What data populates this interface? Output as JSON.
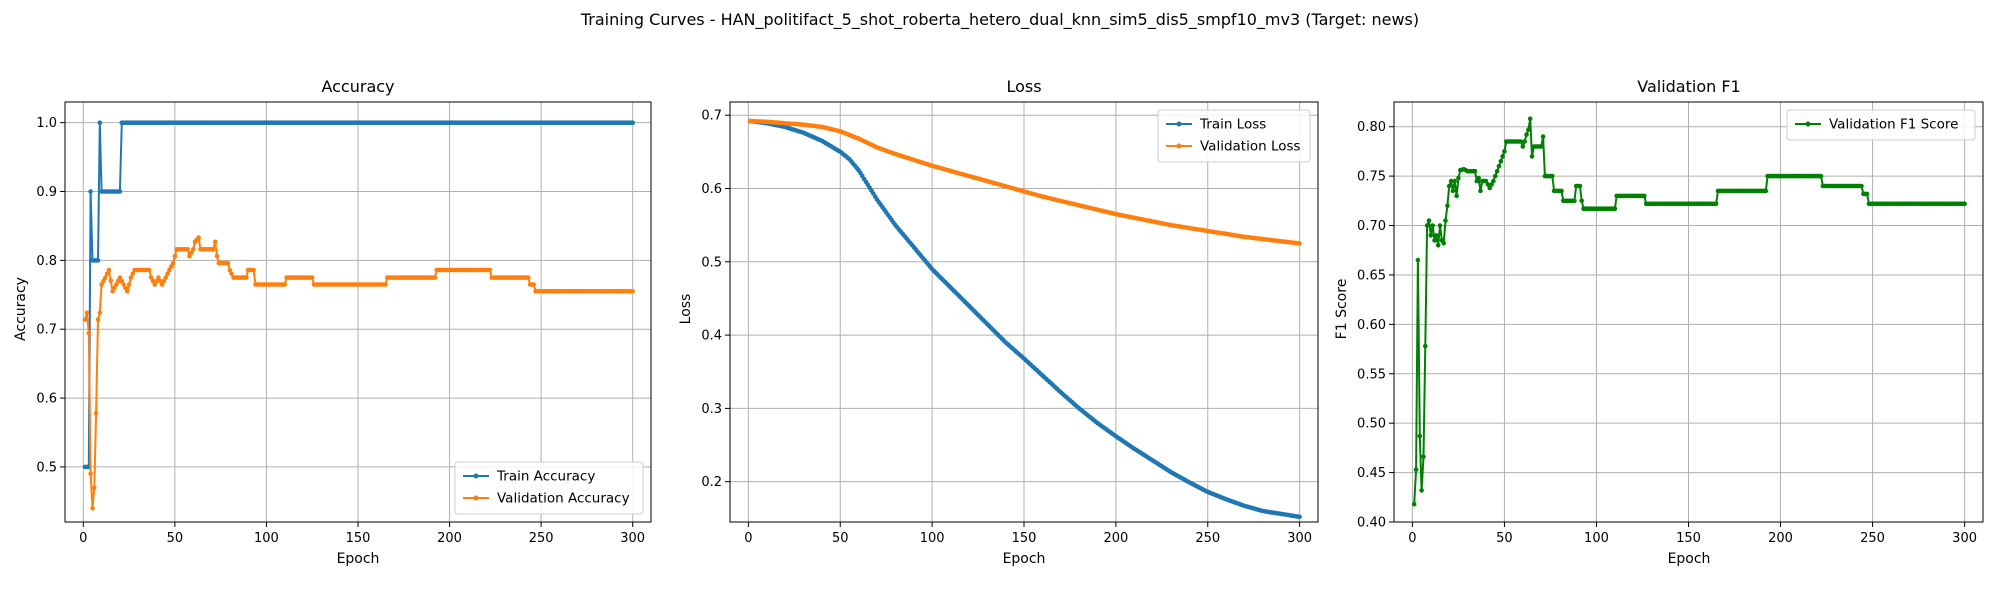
{
  "figure_title": "Training Curves - HAN_politifact_5_shot_roberta_hetero_dual_knn_sim5_dis5_smpf10_mv3 (Target: news)",
  "chart_data": [
    {
      "type": "line",
      "title": "Accuracy",
      "xlabel": "Epoch",
      "ylabel": "Accuracy",
      "xlim": [
        -10,
        310
      ],
      "ylim": [
        0.42,
        1.03
      ],
      "xticks": [
        0,
        50,
        100,
        150,
        200,
        250,
        300
      ],
      "yticks": [
        0.5,
        0.6,
        0.7,
        0.8,
        0.9,
        1.0
      ],
      "ytick_labels": [
        "0.5",
        "0.6",
        "0.7",
        "0.8",
        "0.9",
        "1.0"
      ],
      "grid": true,
      "legend": "lower-right",
      "series": [
        {
          "name": "Train Accuracy",
          "color": "#1f77b4",
          "points": [
            [
              1,
              0.5
            ],
            [
              2,
              0.5
            ],
            [
              3,
              0.5
            ],
            [
              4,
              0.9
            ],
            [
              5,
              0.8
            ],
            [
              6,
              0.8
            ],
            [
              7,
              0.8
            ],
            [
              8,
              0.8
            ],
            [
              9,
              1.0
            ],
            [
              10,
              0.9
            ],
            [
              20,
              0.9
            ],
            [
              21,
              1.0
            ],
            [
              300,
              1.0
            ]
          ]
        },
        {
          "name": "Validation Accuracy",
          "color": "#ff7f0e",
          "points": [
            [
              1,
              0.714
            ],
            [
              2,
              0.724
            ],
            [
              3,
              0.694
            ],
            [
              4,
              0.49
            ],
            [
              5,
              0.44
            ],
            [
              6,
              0.47
            ],
            [
              7,
              0.578
            ],
            [
              8,
              0.714
            ],
            [
              9,
              0.724
            ],
            [
              10,
              0.765
            ],
            [
              12,
              0.775
            ],
            [
              14,
              0.786
            ],
            [
              16,
              0.755
            ],
            [
              18,
              0.765
            ],
            [
              20,
              0.775
            ],
            [
              22,
              0.765
            ],
            [
              24,
              0.755
            ],
            [
              26,
              0.775
            ],
            [
              28,
              0.786
            ],
            [
              36,
              0.786
            ],
            [
              37,
              0.775
            ],
            [
              39,
              0.765
            ],
            [
              41,
              0.775
            ],
            [
              43,
              0.765
            ],
            [
              45,
              0.775
            ],
            [
              47,
              0.786
            ],
            [
              49,
              0.796
            ],
            [
              51,
              0.816
            ],
            [
              57,
              0.816
            ],
            [
              58,
              0.806
            ],
            [
              60,
              0.816
            ],
            [
              61,
              0.827
            ],
            [
              63,
              0.833
            ],
            [
              64,
              0.816
            ],
            [
              71,
              0.816
            ],
            [
              72,
              0.827
            ],
            [
              73,
              0.806
            ],
            [
              74,
              0.796
            ],
            [
              79,
              0.796
            ],
            [
              80,
              0.786
            ],
            [
              82,
              0.775
            ],
            [
              89,
              0.775
            ],
            [
              90,
              0.786
            ],
            [
              93,
              0.786
            ],
            [
              94,
              0.765
            ],
            [
              110,
              0.765
            ],
            [
              111,
              0.775
            ],
            [
              125,
              0.775
            ],
            [
              126,
              0.765
            ],
            [
              165,
              0.765
            ],
            [
              166,
              0.775
            ],
            [
              192,
              0.775
            ],
            [
              193,
              0.786
            ],
            [
              222,
              0.786
            ],
            [
              223,
              0.775
            ],
            [
              243,
              0.775
            ],
            [
              244,
              0.765
            ],
            [
              246,
              0.765
            ],
            [
              247,
              0.755
            ],
            [
              300,
              0.755
            ]
          ]
        }
      ]
    },
    {
      "type": "line",
      "title": "Loss",
      "xlabel": "Epoch",
      "ylabel": "Loss",
      "xlim": [
        -10,
        310
      ],
      "ylim": [
        0.145,
        0.718
      ],
      "xticks": [
        0,
        50,
        100,
        150,
        200,
        250,
        300
      ],
      "yticks": [
        0.2,
        0.3,
        0.4,
        0.5,
        0.6,
        0.7
      ],
      "ytick_labels": [
        "0.2",
        "0.3",
        "0.4",
        "0.5",
        "0.6",
        "0.7"
      ],
      "grid": true,
      "legend": "upper-right",
      "series": [
        {
          "name": "Train Loss",
          "color": "#1f77b4",
          "points": [
            [
              1,
              0.692
            ],
            [
              10,
              0.689
            ],
            [
              20,
              0.684
            ],
            [
              30,
              0.676
            ],
            [
              40,
              0.665
            ],
            [
              50,
              0.65
            ],
            [
              55,
              0.64
            ],
            [
              60,
              0.625
            ],
            [
              65,
              0.605
            ],
            [
              70,
              0.585
            ],
            [
              80,
              0.55
            ],
            [
              90,
              0.52
            ],
            [
              100,
              0.49
            ],
            [
              110,
              0.465
            ],
            [
              120,
              0.44
            ],
            [
              130,
              0.415
            ],
            [
              140,
              0.39
            ],
            [
              150,
              0.368
            ],
            [
              160,
              0.345
            ],
            [
              170,
              0.322
            ],
            [
              180,
              0.3
            ],
            [
              190,
              0.28
            ],
            [
              200,
              0.262
            ],
            [
              210,
              0.245
            ],
            [
              220,
              0.229
            ],
            [
              230,
              0.213
            ],
            [
              240,
              0.199
            ],
            [
              250,
              0.186
            ],
            [
              260,
              0.176
            ],
            [
              270,
              0.167
            ],
            [
              280,
              0.16
            ],
            [
              290,
              0.156
            ],
            [
              300,
              0.152
            ]
          ]
        },
        {
          "name": "Validation Loss",
          "color": "#ff7f0e",
          "points": [
            [
              1,
              0.692
            ],
            [
              10,
              0.691
            ],
            [
              20,
              0.689
            ],
            [
              30,
              0.687
            ],
            [
              40,
              0.684
            ],
            [
              50,
              0.678
            ],
            [
              60,
              0.668
            ],
            [
              70,
              0.656
            ],
            [
              80,
              0.647
            ],
            [
              90,
              0.639
            ],
            [
              100,
              0.631
            ],
            [
              110,
              0.624
            ],
            [
              120,
              0.617
            ],
            [
              130,
              0.61
            ],
            [
              140,
              0.603
            ],
            [
              150,
              0.596
            ],
            [
              160,
              0.589
            ],
            [
              170,
              0.583
            ],
            [
              180,
              0.577
            ],
            [
              190,
              0.571
            ],
            [
              200,
              0.565
            ],
            [
              210,
              0.56
            ],
            [
              220,
              0.555
            ],
            [
              230,
              0.55
            ],
            [
              240,
              0.546
            ],
            [
              250,
              0.542
            ],
            [
              260,
              0.538
            ],
            [
              270,
              0.534
            ],
            [
              280,
              0.531
            ],
            [
              290,
              0.528
            ],
            [
              300,
              0.525
            ]
          ]
        }
      ]
    },
    {
      "type": "line",
      "title": "Validation F1",
      "xlabel": "Epoch",
      "ylabel": "F1 Score",
      "xlim": [
        -10,
        310
      ],
      "ylim": [
        0.4,
        0.825
      ],
      "xticks": [
        0,
        50,
        100,
        150,
        200,
        250,
        300
      ],
      "yticks": [
        0.4,
        0.45,
        0.5,
        0.55,
        0.6,
        0.65,
        0.7,
        0.75,
        0.8
      ],
      "ytick_labels": [
        "0.40",
        "0.45",
        "0.50",
        "0.55",
        "0.60",
        "0.65",
        "0.70",
        "0.75",
        "0.80"
      ],
      "grid": true,
      "legend": "upper-right",
      "series": [
        {
          "name": "Validation F1 Score",
          "color": "#008000",
          "points": [
            [
              1,
              0.418
            ],
            [
              2,
              0.453
            ],
            [
              3,
              0.665
            ],
            [
              4,
              0.487
            ],
            [
              5,
              0.432
            ],
            [
              6,
              0.466
            ],
            [
              7,
              0.578
            ],
            [
              8,
              0.7
            ],
            [
              9,
              0.705
            ],
            [
              10,
              0.69
            ],
            [
              11,
              0.7
            ],
            [
              12,
              0.685
            ],
            [
              13,
              0.69
            ],
            [
              14,
              0.68
            ],
            [
              15,
              0.7
            ],
            [
              16,
              0.685
            ],
            [
              17,
              0.682
            ],
            [
              18,
              0.705
            ],
            [
              19,
              0.72
            ],
            [
              20,
              0.74
            ],
            [
              21,
              0.745
            ],
            [
              22,
              0.735
            ],
            [
              23,
              0.745
            ],
            [
              24,
              0.73
            ],
            [
              25,
              0.748
            ],
            [
              26,
              0.756
            ],
            [
              28,
              0.757
            ],
            [
              30,
              0.755
            ],
            [
              34,
              0.755
            ],
            [
              35,
              0.745
            ],
            [
              36,
              0.748
            ],
            [
              37,
              0.735
            ],
            [
              38,
              0.745
            ],
            [
              40,
              0.745
            ],
            [
              42,
              0.738
            ],
            [
              44,
              0.745
            ],
            [
              46,
              0.755
            ],
            [
              48,
              0.765
            ],
            [
              50,
              0.775
            ],
            [
              51,
              0.785
            ],
            [
              59,
              0.785
            ],
            [
              60,
              0.78
            ],
            [
              61,
              0.785
            ],
            [
              62,
              0.792
            ],
            [
              63,
              0.797
            ],
            [
              64,
              0.808
            ],
            [
              65,
              0.77
            ],
            [
              66,
              0.78
            ],
            [
              70,
              0.78
            ],
            [
              71,
              0.79
            ],
            [
              72,
              0.75
            ],
            [
              76,
              0.75
            ],
            [
              77,
              0.735
            ],
            [
              81,
              0.735
            ],
            [
              82,
              0.725
            ],
            [
              88,
              0.725
            ],
            [
              89,
              0.74
            ],
            [
              91,
              0.74
            ],
            [
              92,
              0.725
            ],
            [
              93,
              0.717
            ],
            [
              110,
              0.717
            ],
            [
              111,
              0.73
            ],
            [
              126,
              0.73
            ],
            [
              127,
              0.722
            ],
            [
              165,
              0.722
            ],
            [
              166,
              0.735
            ],
            [
              192,
              0.735
            ],
            [
              193,
              0.75
            ],
            [
              222,
              0.75
            ],
            [
              223,
              0.74
            ],
            [
              244,
              0.74
            ],
            [
              245,
              0.732
            ],
            [
              247,
              0.732
            ],
            [
              248,
              0.722
            ],
            [
              300,
              0.722
            ]
          ]
        }
      ]
    }
  ]
}
